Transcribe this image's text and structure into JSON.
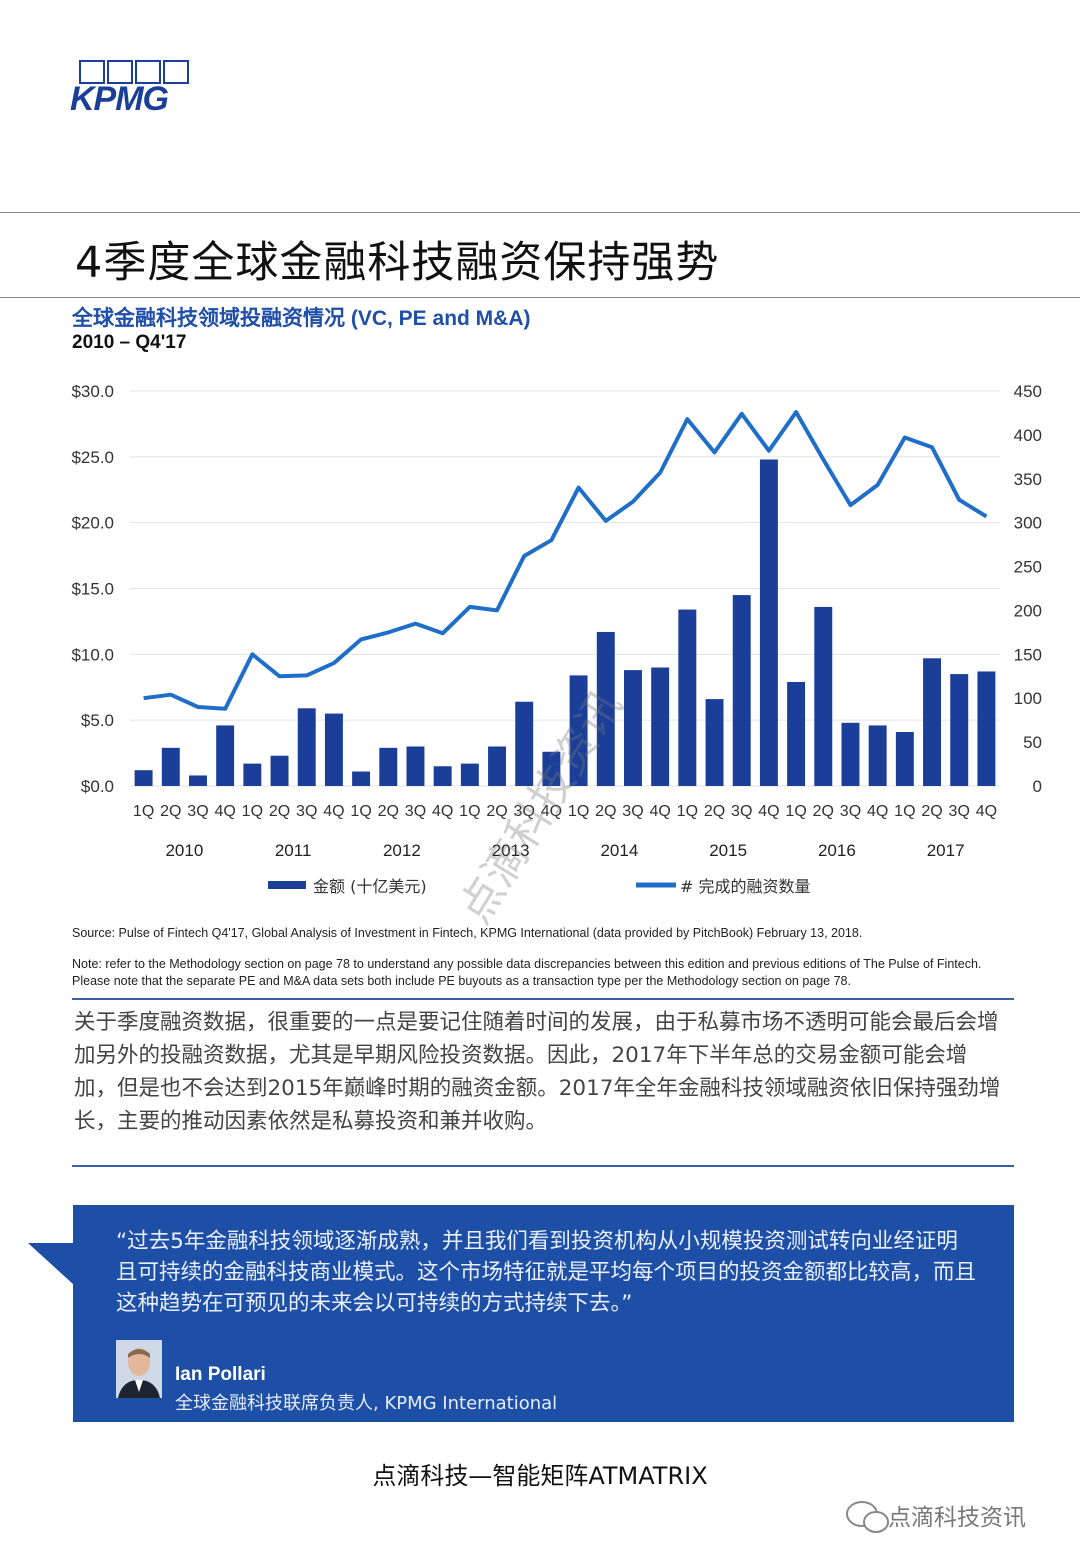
{
  "brand": {
    "logo_text": "KPMG",
    "accent": "#1b3f99"
  },
  "page_title": "4季度全球金融科技融资保持强势",
  "chart_heading": {
    "title": "全球金融科技领域投融资情况 (VC, PE and M&A)",
    "subtitle": "2010 – Q4'17"
  },
  "chart_data": {
    "type": "bar+line",
    "categories": [
      "1Q",
      "2Q",
      "3Q",
      "4Q",
      "1Q",
      "2Q",
      "3Q",
      "4Q",
      "1Q",
      "2Q",
      "3Q",
      "4Q",
      "1Q",
      "2Q",
      "3Q",
      "4Q",
      "1Q",
      "2Q",
      "3Q",
      "4Q",
      "1Q",
      "2Q",
      "3Q",
      "4Q",
      "1Q",
      "2Q",
      "3Q",
      "4Q",
      "1Q",
      "2Q",
      "3Q",
      "4Q"
    ],
    "years": [
      "2010",
      "2011",
      "2012",
      "2013",
      "2014",
      "2015",
      "2016",
      "2017"
    ],
    "series": [
      {
        "name": "金额 (十亿美元)",
        "type": "bar",
        "axis": "left",
        "color": "#1b3f99",
        "values": [
          1.2,
          2.9,
          0.8,
          4.6,
          1.7,
          2.3,
          5.9,
          5.5,
          1.1,
          2.9,
          3.0,
          1.5,
          1.7,
          3.0,
          6.4,
          2.6,
          8.4,
          11.7,
          8.8,
          9.0,
          13.4,
          6.6,
          14.5,
          24.8,
          7.9,
          13.6,
          4.8,
          4.6,
          4.1,
          9.7,
          8.5,
          8.7
        ]
      },
      {
        "name": "# 完成的融资数量",
        "type": "line",
        "axis": "right",
        "color": "#1f6fc9",
        "values": [
          100,
          104,
          90,
          88,
          150,
          125,
          126,
          140,
          167,
          175,
          185,
          174,
          204,
          200,
          262,
          280,
          340,
          302,
          324,
          357,
          418,
          380,
          424,
          382,
          426,
          372,
          320,
          343,
          397,
          386,
          326,
          307
        ]
      }
    ],
    "left_axis": {
      "ticks": [
        "$0.0",
        "$5.0",
        "$10.0",
        "$15.0",
        "$20.0",
        "$25.0",
        "$30.0"
      ],
      "range": [
        0,
        30
      ]
    },
    "right_axis": {
      "ticks": [
        "0",
        "50",
        "100",
        "150",
        "200",
        "250",
        "300",
        "350",
        "400",
        "450"
      ],
      "range": [
        0,
        450
      ]
    }
  },
  "source": "Source: Pulse of Fintech Q4'17, Global Analysis of Investment in Fintech, KPMG International (data provided by PitchBook) February 13, 2018.",
  "note": "Note: refer to the Methodology section on page 78 to understand any possible data discrepancies between this edition and previous editions of The Pulse of Fintech. Please note that the separate PE and M&A data sets both include PE buyouts as a transaction type per the Methodology section on page 78.",
  "body_text": "关于季度融资数据，很重要的一点是要记住随着时间的发展，由于私募市场不透明可能会最后会增加另外的投融资数据，尤其是早期风险投资数据。因此，2017年下半年总的交易金额可能会增加，但是也不会达到2015年巅峰时期的融资金额。2017年全年金融科技领域融资依旧保持强劲增长，主要的推动因素依然是私募投资和兼并收购。",
  "quote": {
    "text": "“过去5年金融科技领域逐渐成熟，并且我们看到投资机构从小规模投资测试转向业经证明且可持续的金融科技商业模式。这个市场特征就是平均每个项目的投资金额都比较高，而且这种趋势在可预见的未来会以可持续的方式持续下去。”",
    "author": "Ian Pollari",
    "role": "全球金融科技联席负责人, KPMG International"
  },
  "footer": "点滴科技—智能矩阵ATMATRIX",
  "watermark": "点滴科技资讯",
  "wechat_label": "点滴科技资讯"
}
